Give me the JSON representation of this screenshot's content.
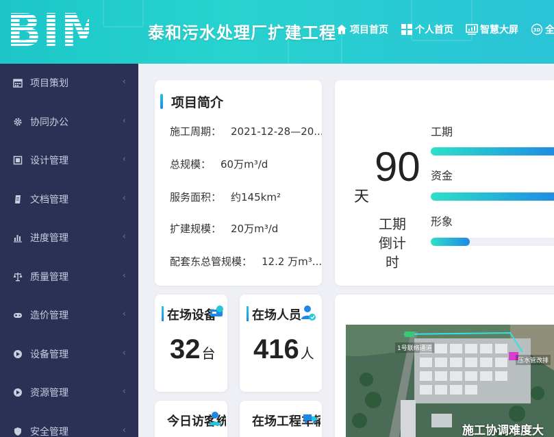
{
  "header": {
    "logo": "BIM",
    "title": "泰和污水处理厂扩建工程",
    "nav": [
      {
        "label": "项目首页",
        "icon": "home-icon"
      },
      {
        "label": "个人首页",
        "icon": "grid-icon"
      },
      {
        "label": "智慧大屏",
        "icon": "chart-screen-icon"
      },
      {
        "label": "全景",
        "icon": "3d-icon"
      }
    ]
  },
  "sidebar": {
    "items": [
      {
        "label": "项目策划",
        "icon": "calendar-icon"
      },
      {
        "label": "协同办公",
        "icon": "gear-icon"
      },
      {
        "label": "设计管理",
        "icon": "design-icon"
      },
      {
        "label": "文档管理",
        "icon": "document-icon"
      },
      {
        "label": "进度管理",
        "icon": "bar-chart-icon"
      },
      {
        "label": "质量管理",
        "icon": "scale-icon"
      },
      {
        "label": "造价管理",
        "icon": "gamepad-icon"
      },
      {
        "label": "设备管理",
        "icon": "location-icon"
      },
      {
        "label": "资源管理",
        "icon": "location-icon"
      },
      {
        "label": "安全管理",
        "icon": "shield-icon"
      }
    ]
  },
  "intro": {
    "title": "项目简介",
    "rows": [
      {
        "label": "施工周期：",
        "value": "2021-12-28—20..."
      },
      {
        "label": "总规模：",
        "value": "60万m³/d"
      },
      {
        "label": "服务面积：",
        "value": "约145km²"
      },
      {
        "label": "扩建规模：",
        "value": "20万m³/d"
      },
      {
        "label": "配套东总管规模：",
        "value": "12.2 万m³..."
      }
    ]
  },
  "countdown": {
    "value": "90",
    "unit": "天",
    "label_lines": [
      "工期",
      "倒计",
      "时"
    ],
    "progress": [
      {
        "label": "工期",
        "percent": 100
      },
      {
        "label": "资金",
        "percent": 100
      },
      {
        "label": "形象",
        "percent": 30
      }
    ]
  },
  "stats": [
    {
      "title": "在场设备",
      "value": "32",
      "unit": "台",
      "icon": "equipment-icon"
    },
    {
      "title": "在场人员",
      "value": "416",
      "unit": "人",
      "icon": "person-icon"
    },
    {
      "title": "今日访客统",
      "icon": "visitor-icon"
    },
    {
      "title": "在场工程车辆",
      "icon": "truck-icon"
    }
  ],
  "map": {
    "labels": [
      "1号联络通道",
      "压水管改排"
    ],
    "caption": "施工协调难度大"
  },
  "colors": {
    "header_start": "#1cc6c9",
    "sidebar_bg": "#2a3154",
    "accent": "#1e88e5",
    "accent_teal": "#2de0c8"
  }
}
